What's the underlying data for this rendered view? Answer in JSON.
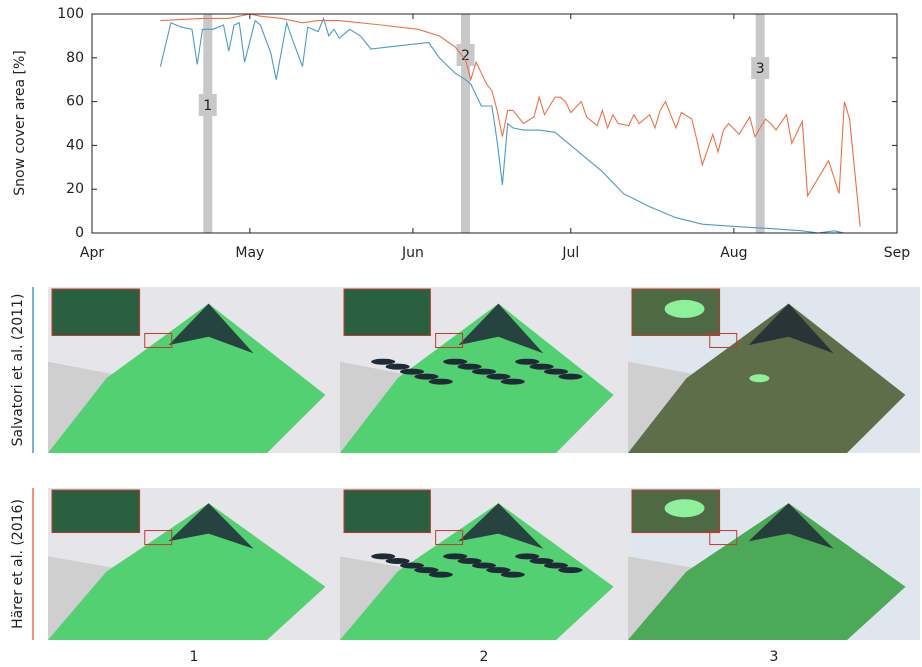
{
  "chart_data": {
    "type": "line",
    "ylabel": "Snow cover area [%]",
    "xlim": [
      0,
      153
    ],
    "xticks": [
      {
        "value": 0,
        "label": "Apr"
      },
      {
        "value": 30,
        "label": "May"
      },
      {
        "value": 61,
        "label": "Jun"
      },
      {
        "value": 91,
        "label": "Jul"
      },
      {
        "value": 122,
        "label": "Aug"
      },
      {
        "value": 153,
        "label": "Sep"
      }
    ],
    "ylim": [
      0,
      100
    ],
    "yticks": [
      0,
      20,
      40,
      60,
      80,
      100
    ],
    "markers": [
      {
        "x": 22,
        "label": "1"
      },
      {
        "x": 71,
        "label": "2"
      },
      {
        "x": 127,
        "label": "3"
      }
    ],
    "series": [
      {
        "name": "Salvatori et al. (2011)",
        "color": "#4a9bc7",
        "x": [
          13,
          15,
          17,
          19,
          20,
          21,
          23,
          25,
          26,
          27,
          28,
          29,
          31,
          32,
          34,
          35,
          37,
          38,
          40,
          41,
          43,
          44,
          45,
          46,
          47,
          49,
          51,
          53,
          64,
          66,
          69,
          71,
          72,
          73,
          74,
          76,
          77,
          78,
          79,
          80,
          82,
          85,
          88,
          92,
          97,
          101,
          106,
          111,
          116,
          122,
          129,
          135,
          138,
          141,
          143,
          145
        ],
        "values": [
          76,
          96,
          94,
          93,
          77,
          93,
          93,
          95,
          83,
          95,
          96,
          78,
          97,
          95,
          82,
          70,
          96,
          89,
          76,
          94,
          92,
          98,
          90,
          93,
          89,
          93,
          90,
          84,
          87,
          80,
          73,
          70,
          68,
          63,
          58,
          58,
          42,
          22,
          50,
          48,
          47,
          47,
          46,
          38,
          28,
          18,
          12,
          7,
          4,
          3,
          2,
          1,
          0,
          1,
          0,
          0
        ]
      },
      {
        "name": "Härer et al. (2016)",
        "color": "#ee7048",
        "x": [
          13,
          21,
          26,
          30,
          32,
          36,
          40,
          43,
          47,
          55,
          62,
          66,
          69,
          71,
          72,
          73,
          75,
          76,
          77,
          78,
          79,
          80,
          82,
          84,
          85,
          86,
          88,
          89,
          90,
          91,
          93,
          94,
          96,
          97,
          98,
          99,
          100,
          102,
          103,
          104,
          106,
          107,
          108,
          109,
          111,
          112,
          114,
          115,
          116,
          118,
          119,
          120,
          121,
          123,
          125,
          126,
          128,
          129,
          130,
          132,
          133,
          135,
          136,
          140,
          142,
          143,
          144,
          146
        ],
        "values": [
          97,
          98,
          98,
          100,
          99,
          98,
          96,
          97,
          97,
          95,
          93,
          90,
          85,
          79,
          70,
          78,
          68,
          65,
          56,
          44,
          56,
          56,
          50,
          53,
          62,
          54,
          62,
          62,
          60,
          55,
          60,
          53,
          49,
          56,
          48,
          54,
          50,
          49,
          54,
          50,
          54,
          48,
          56,
          60,
          48,
          55,
          52,
          42,
          31,
          45,
          37,
          47,
          50,
          45,
          53,
          44,
          52,
          50,
          47,
          54,
          41,
          51,
          17,
          33,
          18,
          60,
          52,
          3
        ]
      }
    ]
  },
  "panel_grid": {
    "column_labels": [
      "1",
      "2",
      "3"
    ]
  }
}
